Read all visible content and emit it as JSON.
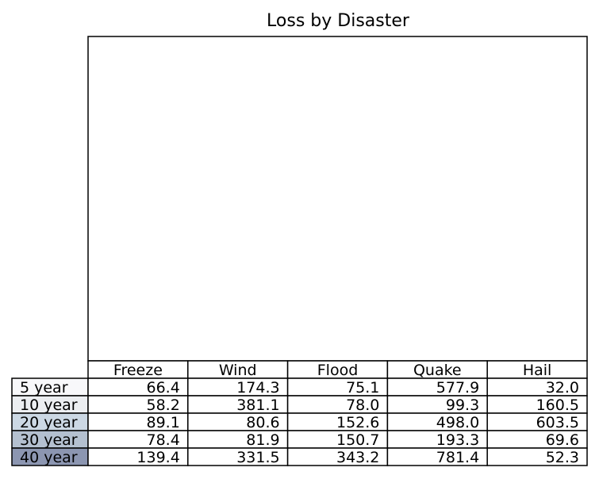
{
  "chart_data": {
    "type": "table",
    "title": "Loss by Disaster",
    "columns": [
      "Freeze",
      "Wind",
      "Flood",
      "Quake",
      "Hail"
    ],
    "rows": [
      {
        "label": "5 year",
        "values": [
          "66.4",
          "174.3",
          "75.1",
          "577.9",
          "32.0"
        ],
        "color": "#f8f8fa"
      },
      {
        "label": "10 year",
        "values": [
          "58.2",
          "381.1",
          "78.0",
          "99.3",
          "160.5"
        ],
        "color": "#eceef1"
      },
      {
        "label": "20 year",
        "values": [
          "89.1",
          "80.6",
          "152.6",
          "498.0",
          "603.5"
        ],
        "color": "#ccd8e4"
      },
      {
        "label": "30 year",
        "values": [
          "78.4",
          "81.9",
          "150.7",
          "193.3",
          "69.6"
        ],
        "color": "#b4c0d0"
      },
      {
        "label": "40 year",
        "values": [
          "139.4",
          "331.5",
          "343.2",
          "781.4",
          "52.3"
        ],
        "color": "#8c96b1"
      }
    ]
  }
}
